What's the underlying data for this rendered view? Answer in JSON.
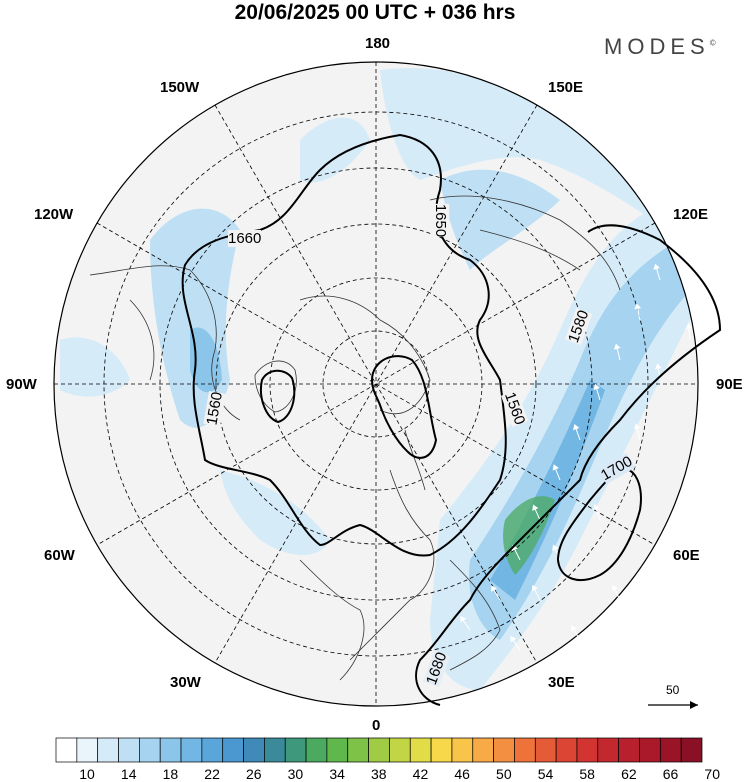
{
  "header": {
    "title": "20/06/2025  00 UTC  + 036 hrs",
    "logo": "MODES",
    "logo_mark": "©"
  },
  "map": {
    "projection": "north polar stereographic",
    "longitude_labels": {
      "top": "180",
      "bottom": "0",
      "left": "90W",
      "right": "90E",
      "upper_left": "150W",
      "upper_right": "150E",
      "left_upper": "120W",
      "right_upper": "120E",
      "left_lower": "60W",
      "right_lower": "60E",
      "lower_left": "30W",
      "lower_right": "30E"
    },
    "contour_labels": [
      "1660",
      "1650",
      "1580",
      "1560",
      "1560",
      "1700",
      "1680"
    ],
    "wind_vector_reference": "50"
  },
  "colorbar": {
    "labels": [
      "10",
      "14",
      "18",
      "22",
      "26",
      "30",
      "34",
      "38",
      "42",
      "46",
      "50",
      "54",
      "58",
      "62",
      "66",
      "70"
    ],
    "colors": [
      "#ffffff",
      "#eaf4fb",
      "#d6ebf8",
      "#bfe0f4",
      "#a6d3ef",
      "#8cc5ea",
      "#72b6e3",
      "#5aa6da",
      "#4a98cf",
      "#3f8ab8",
      "#3a8a9a",
      "#3e997c",
      "#4caa60",
      "#60b84c",
      "#7ec248",
      "#a0cc45",
      "#c2d544",
      "#e2dc48",
      "#f6d84a",
      "#f8c44a",
      "#f7aa45",
      "#f38f40",
      "#ee733b",
      "#e55a37",
      "#dc4433",
      "#d13431",
      "#c4282f",
      "#b7202c",
      "#a9192a",
      "#9a1428",
      "#8a1026"
    ]
  }
}
